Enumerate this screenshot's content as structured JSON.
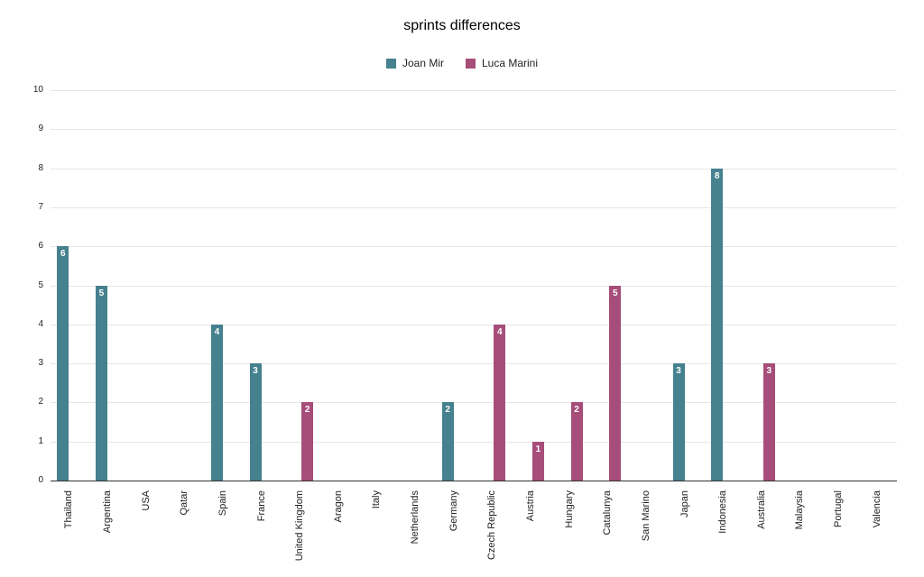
{
  "chart_data": {
    "type": "bar",
    "title": "sprints differences",
    "xlabel": "",
    "ylabel": "",
    "ylim": [
      0,
      10
    ],
    "ytick_step": 1,
    "grid": true,
    "legend_position": "top",
    "bar_value_labels": true,
    "categories": [
      "Thailand",
      "Argentina",
      "USA",
      "Qatar",
      "Spain",
      "France",
      "United Kingdom",
      "Aragon",
      "Italy",
      "Netherlands",
      "Germany",
      "Czech Republic",
      "Austria",
      "Hungary",
      "Catalunya",
      "San Marino",
      "Japan",
      "Indonesia",
      "Australia",
      "Malaysia",
      "Portugal",
      "Valencia"
    ],
    "series": [
      {
        "name": "Joan Mir",
        "color": "#45818e",
        "values": [
          6,
          5,
          0,
          0,
          4,
          3,
          0,
          0,
          0,
          0,
          2,
          0,
          0,
          0,
          0,
          0,
          3,
          8,
          0,
          0,
          0,
          0
        ]
      },
      {
        "name": "Luca Marini",
        "color": "#a64d79",
        "values": [
          0,
          0,
          0,
          0,
          0,
          0,
          2,
          0,
          0,
          0,
          0,
          4,
          1,
          2,
          5,
          0,
          0,
          0,
          3,
          0,
          0,
          0
        ]
      }
    ]
  },
  "colors": {
    "gridline": "#e6e6e6",
    "axis": "#333333",
    "text": "#222222",
    "bar_label": "#ffffff"
  }
}
